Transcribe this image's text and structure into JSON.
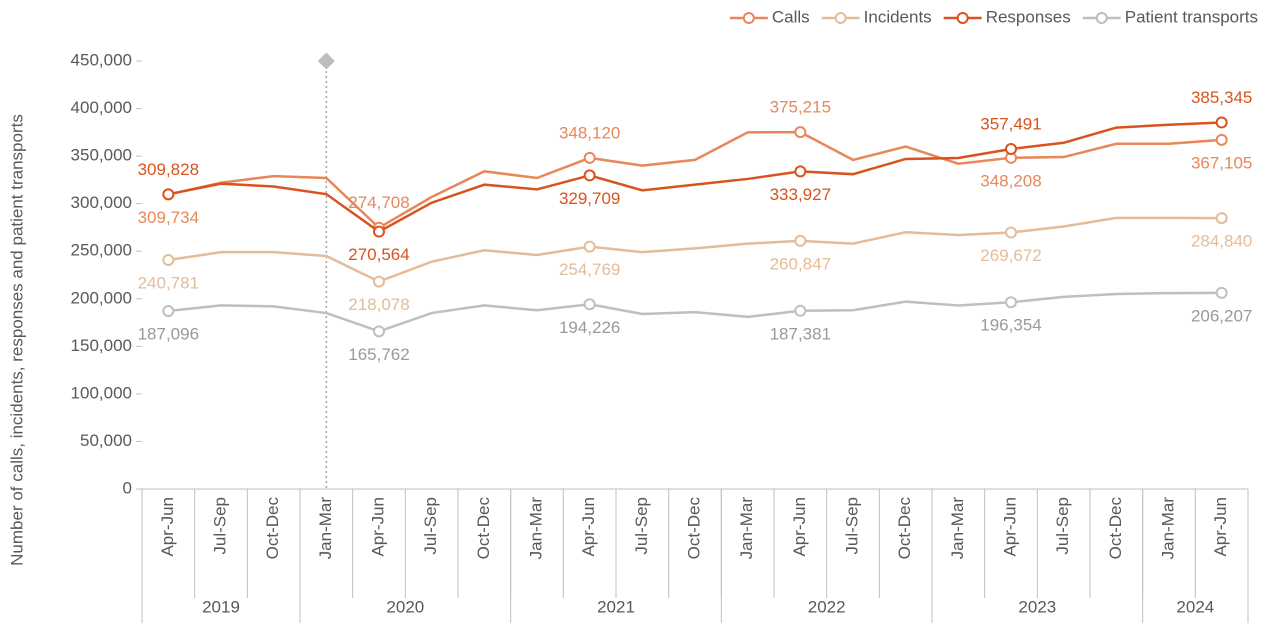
{
  "chart_data": {
    "type": "line",
    "y_axis_label": "Number of calls, incidents, responses and patient transports",
    "categories": [
      "Apr-Jun",
      "Jul-Sep",
      "Oct-Dec",
      "Jan-Mar",
      "Apr-Jun",
      "Jul-Sep",
      "Oct-Dec",
      "Jan-Mar",
      "Apr-Jun",
      "Jul-Sep",
      "Oct-Dec",
      "Jan-Mar",
      "Apr-Jun",
      "Jul-Sep",
      "Oct-Dec",
      "Jan-Mar",
      "Apr-Jun",
      "Jul-Sep",
      "Oct-Dec",
      "Jan-Mar",
      "Apr-Jun"
    ],
    "category_groups": [
      {
        "label": "2019",
        "count": 3
      },
      {
        "label": "2020",
        "count": 4
      },
      {
        "label": "2021",
        "count": 4
      },
      {
        "label": "2022",
        "count": 4
      },
      {
        "label": "2023",
        "count": 4
      },
      {
        "label": "2024",
        "count": 2
      }
    ],
    "series": [
      {
        "name": "Calls",
        "color": "#e8875a",
        "values": [
          309734,
          322000,
          329000,
          327000,
          274708,
          307000,
          334000,
          327000,
          348120,
          340000,
          346000,
          375000,
          375215,
          346000,
          360000,
          342000,
          348208,
          349000,
          363000,
          363000,
          367105
        ],
        "value_labels": [
          "309,734",
          null,
          null,
          null,
          "274,708",
          null,
          null,
          null,
          "348,120",
          null,
          null,
          null,
          "375,215",
          null,
          null,
          null,
          "348,208",
          null,
          null,
          null,
          "367,105"
        ]
      },
      {
        "name": "Incidents",
        "color": "#e3bc9a",
        "values": [
          240781,
          249000,
          249000,
          245000,
          218078,
          239000,
          251000,
          246000,
          254769,
          249000,
          253000,
          258000,
          260847,
          258000,
          270000,
          267000,
          269672,
          276000,
          285000,
          285000,
          284840
        ],
        "value_labels": [
          "240,781",
          null,
          null,
          null,
          "218,078",
          null,
          null,
          null,
          "254,769",
          null,
          null,
          null,
          "260,847",
          null,
          null,
          null,
          "269,672",
          null,
          null,
          null,
          "284,840"
        ]
      },
      {
        "name": "Responses",
        "color": "#d9531e",
        "values": [
          309828,
          321000,
          318000,
          310000,
          270564,
          301000,
          320000,
          315000,
          329709,
          314000,
          320000,
          326000,
          333927,
          331000,
          347000,
          348000,
          357491,
          364000,
          380000,
          383000,
          385345
        ],
        "value_labels": [
          "309,828",
          null,
          null,
          null,
          "270,564",
          null,
          null,
          null,
          "329,709",
          null,
          null,
          null,
          "333,927",
          null,
          null,
          null,
          "357,491",
          null,
          null,
          null,
          "385,345"
        ]
      },
      {
        "name": "Patient transports",
        "color": "#bfbfbf",
        "values": [
          187096,
          193000,
          192000,
          185000,
          165762,
          185000,
          193000,
          188000,
          194226,
          184000,
          186000,
          181000,
          187381,
          188000,
          197000,
          193000,
          196354,
          202000,
          205000,
          206000,
          206207
        ],
        "value_labels": [
          "187,096",
          null,
          null,
          null,
          "165,762",
          null,
          null,
          null,
          "194,226",
          null,
          null,
          null,
          "187,381",
          null,
          null,
          null,
          "196,354",
          null,
          null,
          null,
          "206,207"
        ]
      }
    ],
    "ylim": [
      0,
      450000
    ],
    "yticks": [
      0,
      {
        "value": 50000,
        "label": "50,000"
      },
      {
        "value": 100000,
        "label": "100,000"
      },
      {
        "value": 150000,
        "label": "150,000"
      },
      {
        "value": 200000,
        "label": "200,000"
      },
      {
        "value": 250000,
        "label": "250,000"
      },
      {
        "value": 300000,
        "label": "300,000"
      },
      {
        "value": 350000,
        "label": "350,000"
      },
      {
        "value": 400000,
        "label": "400,000"
      },
      {
        "value": 450000,
        "label": "450,000"
      }
    ],
    "legend": "top-right"
  }
}
